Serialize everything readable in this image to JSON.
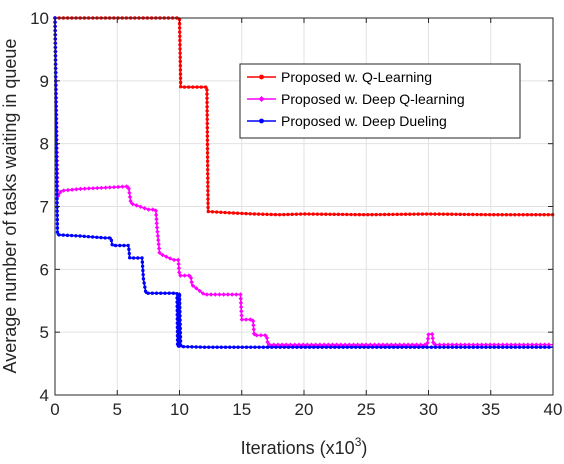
{
  "chart_data": {
    "type": "line",
    "xlabel": "Iterations (x10",
    "xlabel_sup": "3",
    "xlabel_end": ")",
    "ylabel": "Average number of tasks waiting in queue",
    "xlim": [
      0,
      40
    ],
    "ylim": [
      4,
      10
    ],
    "xticks": [
      "0",
      "5",
      "10",
      "15",
      "20",
      "25",
      "30",
      "35",
      "40"
    ],
    "yticks": [
      "4",
      "5",
      "6",
      "7",
      "8",
      "9",
      "10"
    ],
    "grid": true,
    "legend_position": "top-right",
    "series": [
      {
        "name": "Proposed w. Q-Learning",
        "color": "#ff0000",
        "marker": "dot",
        "points": [
          [
            0,
            10
          ],
          [
            10,
            10
          ],
          [
            10.1,
            8.9
          ],
          [
            12.2,
            8.9
          ],
          [
            12.3,
            6.92
          ],
          [
            14,
            6.9
          ],
          [
            16,
            6.88
          ],
          [
            18,
            6.87
          ],
          [
            20,
            6.88
          ],
          [
            25,
            6.87
          ],
          [
            30,
            6.88
          ],
          [
            35,
            6.87
          ],
          [
            40,
            6.87
          ]
        ]
      },
      {
        "name": "Proposed w. Deep Q-learning",
        "color": "#ff00ff",
        "marker": "diamond",
        "points": [
          [
            0,
            10
          ],
          [
            0.2,
            7.15
          ],
          [
            0.5,
            7.25
          ],
          [
            2,
            7.28
          ],
          [
            4,
            7.3
          ],
          [
            5.9,
            7.32
          ],
          [
            6.1,
            7.05
          ],
          [
            7.5,
            6.95
          ],
          [
            8.1,
            6.95
          ],
          [
            8.2,
            6.65
          ],
          [
            8.4,
            6.25
          ],
          [
            9.5,
            6.15
          ],
          [
            9.9,
            6.15
          ],
          [
            10,
            5.9
          ],
          [
            10.9,
            5.9
          ],
          [
            11,
            5.75
          ],
          [
            12,
            5.6
          ],
          [
            14,
            5.6
          ],
          [
            14.9,
            5.6
          ],
          [
            15,
            5.2
          ],
          [
            15.9,
            5.2
          ],
          [
            16,
            4.95
          ],
          [
            17,
            4.95
          ],
          [
            17.1,
            4.8
          ],
          [
            20,
            4.8
          ],
          [
            25,
            4.8
          ],
          [
            29.9,
            4.8
          ],
          [
            30,
            4.97
          ],
          [
            30.3,
            4.97
          ],
          [
            30.4,
            4.8
          ],
          [
            35,
            4.8
          ],
          [
            40,
            4.8
          ]
        ]
      },
      {
        "name": "Proposed w. Deep Dueling",
        "color": "#0000ff",
        "marker": "dot",
        "points": [
          [
            0,
            10
          ],
          [
            0.2,
            6.55
          ],
          [
            2,
            6.53
          ],
          [
            4,
            6.5
          ],
          [
            4.5,
            6.5
          ],
          [
            4.6,
            6.38
          ],
          [
            5.9,
            6.38
          ],
          [
            6,
            6.18
          ],
          [
            7,
            6.18
          ],
          [
            7.1,
            5.85
          ],
          [
            7.3,
            5.62
          ],
          [
            8.5,
            5.62
          ],
          [
            9.8,
            5.62
          ],
          [
            9.85,
            4.77
          ],
          [
            9.95,
            4.77
          ],
          [
            10,
            5.62
          ],
          [
            10.1,
            4.77
          ],
          [
            12,
            4.76
          ],
          [
            15,
            4.76
          ],
          [
            20,
            4.76
          ],
          [
            25,
            4.76
          ],
          [
            30,
            4.76
          ],
          [
            35,
            4.76
          ],
          [
            40,
            4.76
          ]
        ]
      }
    ]
  }
}
